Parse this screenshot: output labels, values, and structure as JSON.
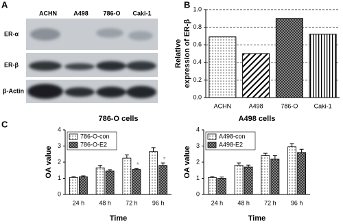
{
  "panel_labels": [
    "A",
    "B",
    "C"
  ],
  "blot": {
    "columns": [
      "ACHN",
      "A498",
      "786-O",
      "Caki-1"
    ],
    "rows": [
      "ER-α",
      "ER-β",
      "β-Actin"
    ]
  },
  "chart_data": [
    {
      "type": "bar",
      "ylabel": [
        "Relative",
        "expression of ER-β"
      ],
      "categories": [
        "ACHN",
        "A498",
        "786-O",
        "Caki-1"
      ],
      "values": [
        0.69,
        0.5,
        0.9,
        0.72
      ],
      "patterns": [
        "dots",
        "diagonal",
        "crosshatch",
        "vertical"
      ],
      "ylim": [
        0,
        1
      ],
      "yticks": [
        {
          "value": 0,
          "label": "0.0"
        },
        0.2,
        0.4,
        0.6,
        0.8,
        {
          "value": 1,
          "label": "1.0"
        }
      ],
      "grid": true
    },
    {
      "type": "grouped_bar",
      "title": "786-O cells",
      "xlabel": "Time",
      "ylabel": "OA value",
      "categories": [
        "24 h",
        "48 h",
        "72 h",
        "96 h"
      ],
      "series": [
        {
          "name": "786-O-con",
          "pattern": "dots",
          "values": [
            1.05,
            1.65,
            2.25,
            2.65
          ],
          "errors": [
            0.05,
            0.15,
            0.2,
            0.25
          ]
        },
        {
          "name": "786-O-E2",
          "pattern": "crosshatch",
          "values": [
            1.1,
            1.45,
            1.55,
            1.8
          ],
          "errors": [
            0.05,
            0.08,
            0.05,
            0.15
          ],
          "marks": [
            null,
            null,
            "*",
            "*"
          ]
        }
      ],
      "ylim": [
        0,
        4
      ],
      "yticks": [
        0,
        1,
        2,
        3,
        4
      ],
      "legend": "upper left"
    },
    {
      "type": "grouped_bar",
      "title": "A498 cells",
      "xlabel": "Time",
      "ylabel": "OA value",
      "categories": [
        "24 h",
        "48 h",
        "72 h",
        "96 h"
      ],
      "series": [
        {
          "name": "A498-con",
          "pattern": "dots",
          "values": [
            1.05,
            1.8,
            2.4,
            2.95
          ],
          "errors": [
            0.05,
            0.15,
            0.15,
            0.2
          ]
        },
        {
          "name": "A498-E2",
          "pattern": "crosshatch",
          "values": [
            1.0,
            1.7,
            2.2,
            2.6
          ],
          "errors": [
            0.08,
            0.12,
            0.2,
            0.2
          ]
        }
      ],
      "ylim": [
        0,
        4
      ],
      "yticks": [
        0,
        1,
        2,
        3,
        4
      ],
      "legend": "upper left"
    }
  ]
}
